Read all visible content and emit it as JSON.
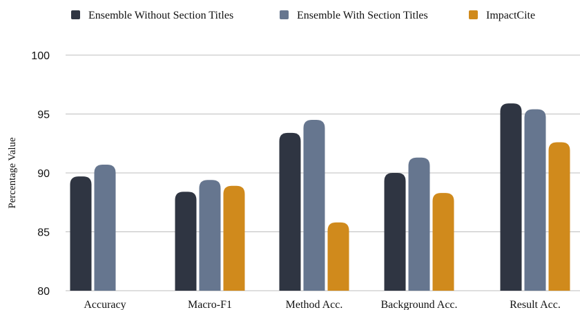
{
  "chart_data": {
    "type": "bar",
    "title": "",
    "xlabel": "",
    "ylabel": "Percentage Value",
    "ylim": [
      80,
      100
    ],
    "yticks": [
      80,
      85,
      90,
      95,
      100
    ],
    "grid": true,
    "legend_position": "top",
    "categories": [
      "Accuracy",
      "Macro-F1",
      "Method Acc.",
      "Background Acc.",
      "Result Acc."
    ],
    "series": [
      {
        "name": "Ensemble Without Section Titles",
        "color": "#2f3542",
        "values": [
          89.7,
          88.4,
          93.4,
          90.0,
          95.9
        ]
      },
      {
        "name": "Ensemble With Section Titles",
        "color": "#66768f",
        "values": [
          90.7,
          89.4,
          94.5,
          91.3,
          95.4
        ]
      },
      {
        "name": "ImpactCite",
        "color": "#d08a1c",
        "values": [
          null,
          88.9,
          85.8,
          88.3,
          92.6
        ]
      }
    ]
  }
}
